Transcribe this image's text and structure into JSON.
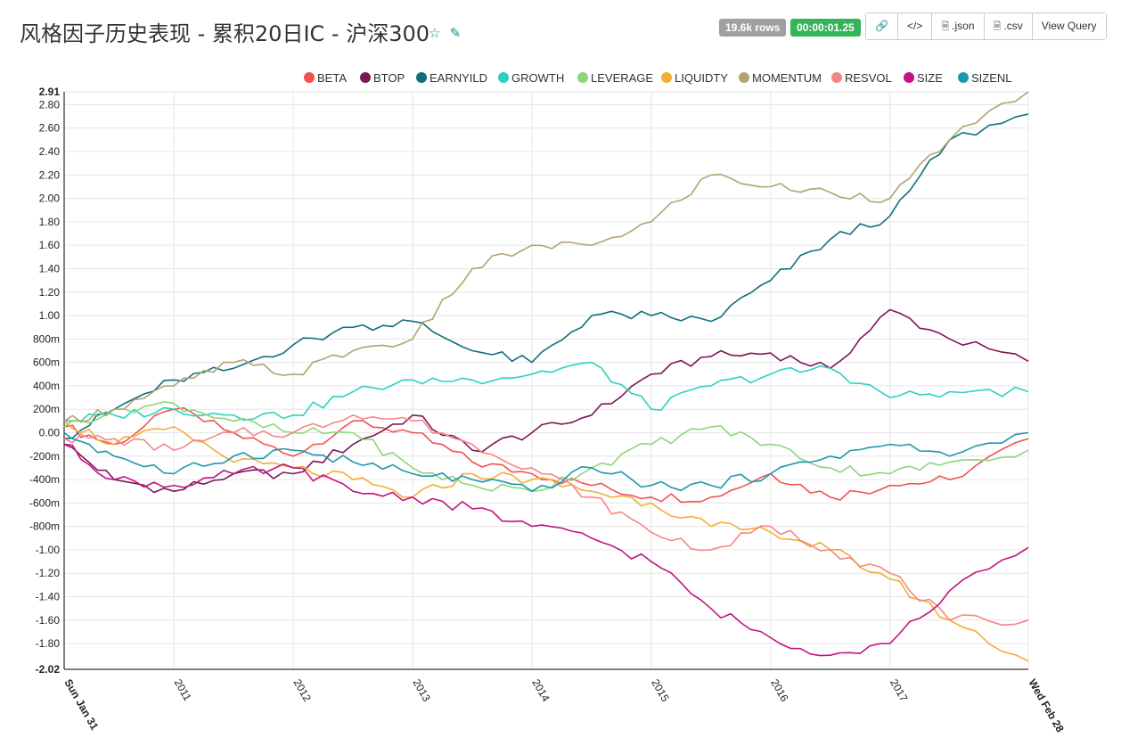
{
  "header": {
    "title": "风格因子历史表现 - 累积20日IC - 沪深300",
    "star_icon": "star-icon",
    "edit_icon": "edit-icon",
    "rows_badge": "19.6k rows",
    "timer_badge": "00:00:01.25",
    "buttons": {
      "link_icon": "link-icon",
      "code_icon": "code-icon",
      "json_label": ".json",
      "csv_label": ".csv",
      "view_query_label": "View Query"
    }
  },
  "chart_data": {
    "type": "line",
    "title": "",
    "xlabel": "",
    "ylabel": "",
    "ylim": [
      -2.02,
      2.91
    ],
    "y_ticks": [
      {
        "v": 2.91,
        "label": "2.91",
        "bold": true
      },
      {
        "v": 2.8,
        "label": "2.80"
      },
      {
        "v": 2.6,
        "label": "2.60"
      },
      {
        "v": 2.4,
        "label": "2.40"
      },
      {
        "v": 2.2,
        "label": "2.20"
      },
      {
        "v": 2.0,
        "label": "2.00"
      },
      {
        "v": 1.8,
        "label": "1.80"
      },
      {
        "v": 1.6,
        "label": "1.60"
      },
      {
        "v": 1.4,
        "label": "1.40"
      },
      {
        "v": 1.2,
        "label": "1.20"
      },
      {
        "v": 1.0,
        "label": "1.00"
      },
      {
        "v": 0.8,
        "label": "800m"
      },
      {
        "v": 0.6,
        "label": "600m"
      },
      {
        "v": 0.4,
        "label": "400m"
      },
      {
        "v": 0.2,
        "label": "200m"
      },
      {
        "v": 0.0,
        "label": "0.00"
      },
      {
        "v": -0.2,
        "label": "-200m"
      },
      {
        "v": -0.4,
        "label": "-400m"
      },
      {
        "v": -0.6,
        "label": "-600m"
      },
      {
        "v": -0.8,
        "label": "-800m"
      },
      {
        "v": -1.0,
        "label": "-1.00"
      },
      {
        "v": -1.2,
        "label": "-1.20"
      },
      {
        "v": -1.4,
        "label": "-1.40"
      },
      {
        "v": -1.6,
        "label": "-1.60"
      },
      {
        "v": -1.8,
        "label": "-1.80"
      },
      {
        "v": -2.02,
        "label": "-2.02",
        "bold": true
      }
    ],
    "x_range": [
      2010.08,
      2018.16
    ],
    "x_ticks": [
      {
        "v": 2010.08,
        "label": "Sun Jan 31",
        "bold": true
      },
      {
        "v": 2011.0,
        "label": "2011"
      },
      {
        "v": 2012.0,
        "label": "2012"
      },
      {
        "v": 2013.0,
        "label": "2013"
      },
      {
        "v": 2014.0,
        "label": "2014"
      },
      {
        "v": 2015.0,
        "label": "2015"
      },
      {
        "v": 2016.0,
        "label": "2016"
      },
      {
        "v": 2017.0,
        "label": "2017"
      },
      {
        "v": 2018.16,
        "label": "Wed Feb 28",
        "bold": true
      }
    ],
    "grid": true,
    "legend_position": "top",
    "x": [
      2010.08,
      2010.5,
      2011.0,
      2011.5,
      2012.0,
      2012.5,
      2013.0,
      2013.5,
      2014.0,
      2014.5,
      2015.0,
      2015.5,
      2016.0,
      2016.5,
      2017.0,
      2017.5,
      2018.16
    ],
    "series": [
      {
        "name": "BETA",
        "color": "#f0524f",
        "values": [
          0.05,
          -0.1,
          0.2,
          0.0,
          -0.2,
          0.1,
          0.0,
          -0.25,
          -0.35,
          -0.45,
          -0.55,
          -0.55,
          -0.35,
          -0.55,
          -0.45,
          -0.4,
          -0.05
        ]
      },
      {
        "name": "BTOP",
        "color": "#7d1656",
        "values": [
          -0.1,
          -0.4,
          -0.5,
          -0.35,
          -0.35,
          -0.1,
          0.15,
          -0.15,
          0.0,
          0.15,
          0.5,
          0.65,
          0.68,
          0.55,
          1.05,
          0.8,
          0.61
        ]
      },
      {
        "name": "EARNYILD",
        "color": "#0f6f7c",
        "values": [
          -0.05,
          0.2,
          0.45,
          0.55,
          0.75,
          0.9,
          0.95,
          0.7,
          0.6,
          1.0,
          1.0,
          0.95,
          1.3,
          1.65,
          1.85,
          2.5,
          2.72
        ]
      },
      {
        "name": "GROWTH",
        "color": "#2dd1bf",
        "values": [
          0.1,
          0.15,
          0.2,
          0.15,
          0.15,
          0.35,
          0.45,
          0.45,
          0.5,
          0.6,
          0.2,
          0.4,
          0.5,
          0.55,
          0.3,
          0.35,
          0.35
        ]
      },
      {
        "name": "LEVERAGE",
        "color": "#8cd67a",
        "values": [
          0.05,
          0.2,
          0.25,
          0.1,
          0.0,
          0.0,
          -0.3,
          -0.45,
          -0.5,
          -0.3,
          -0.1,
          0.05,
          -0.1,
          -0.3,
          -0.35,
          -0.25,
          -0.15
        ]
      },
      {
        "name": "LIQUIDTY",
        "color": "#f4ac33",
        "values": [
          0.1,
          -0.1,
          0.05,
          -0.25,
          -0.3,
          -0.4,
          -0.55,
          -0.35,
          -0.4,
          -0.5,
          -0.6,
          -0.8,
          -0.85,
          -1.0,
          -1.25,
          -1.6,
          -1.95
        ]
      },
      {
        "name": "MOMENTUM",
        "color": "#b3a36f",
        "values": [
          0.1,
          0.2,
          0.4,
          0.6,
          0.5,
          0.7,
          0.8,
          1.4,
          1.6,
          1.6,
          1.8,
          2.2,
          2.1,
          2.05,
          2.0,
          2.5,
          2.91
        ]
      },
      {
        "name": "RESVOL",
        "color": "#f78585",
        "values": [
          -0.05,
          -0.05,
          -0.15,
          0.0,
          0.0,
          0.15,
          0.1,
          -0.1,
          -0.3,
          -0.55,
          -0.85,
          -1.0,
          -0.8,
          -1.0,
          -1.2,
          -1.6,
          -1.6
        ]
      },
      {
        "name": "SIZE",
        "color": "#c41281",
        "values": [
          -0.1,
          -0.4,
          -0.45,
          -0.35,
          -0.3,
          -0.5,
          -0.55,
          -0.65,
          -0.8,
          -0.9,
          -1.1,
          -1.5,
          -1.75,
          -1.9,
          -1.8,
          -1.35,
          -0.98
        ]
      },
      {
        "name": "SIZENL",
        "color": "#1b98ae",
        "values": [
          0.0,
          -0.2,
          -0.35,
          -0.2,
          -0.15,
          -0.25,
          -0.35,
          -0.4,
          -0.5,
          -0.3,
          -0.45,
          -0.45,
          -0.35,
          -0.2,
          -0.1,
          -0.2,
          0.0
        ]
      }
    ]
  }
}
